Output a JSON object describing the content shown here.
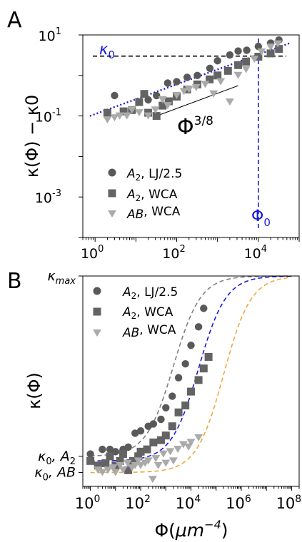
{
  "panel_a_letter": "A",
  "panel_b_letter": "B",
  "chart_data": [
    {
      "panel": "A",
      "type": "scatter",
      "xscale": "log",
      "yscale": "log",
      "xlim": [
        0.5,
        100000
      ],
      "ylim": [
        0.0001,
        10
      ],
      "ylabel": "κ(Φ) − κ0",
      "x_ticks": [
        1,
        100,
        10000
      ],
      "x_tick_labels": [
        {
          "base": "10",
          "exp": "0"
        },
        {
          "base": "10",
          "exp": "2"
        },
        {
          "base": "10",
          "exp": "4"
        }
      ],
      "y_ticks": [
        0.001,
        0.1,
        10
      ],
      "y_tick_labels": [
        {
          "base": "10",
          "exp": "-3"
        },
        {
          "base": "10",
          "exp": "-1"
        },
        {
          "base": "10",
          "exp": "1"
        }
      ],
      "legend_position": "bottom-left",
      "series": [
        {
          "name": "A2, LJ/2.5",
          "name_main": "A",
          "name_sub": "2",
          "name_rest": ", LJ/2.5",
          "marker": "circle",
          "color": "#595959",
          "x": [
            3,
            20,
            32,
            60,
            100,
            180,
            320,
            650,
            1000,
            2000,
            3200,
            5200,
            10000,
            20000,
            32000
          ],
          "y": [
            0.32,
            0.25,
            0.32,
            0.65,
            0.7,
            0.9,
            1.0,
            1.5,
            2.3,
            3.2,
            4.0,
            4.2,
            5.2,
            6.3,
            7.5
          ]
        },
        {
          "name": "A2, WCA",
          "name_main": "A",
          "name_sub": "2",
          "name_rest": ", WCA",
          "marker": "square",
          "color": "#636363",
          "x": [
            2,
            5,
            8,
            12,
            16,
            20,
            32,
            45,
            64,
            100,
            180,
            320,
            640,
            1000,
            1800,
            3200,
            5000,
            10000,
            20000,
            32000
          ],
          "y": [
            0.12,
            0.13,
            0.14,
            0.22,
            0.35,
            0.12,
            0.1,
            0.18,
            0.23,
            0.3,
            0.45,
            0.6,
            0.8,
            1.0,
            1.3,
            1.8,
            2.2,
            2.9,
            3.5,
            4.5
          ]
        },
        {
          "name": "AB, WCA",
          "name_main": "AB",
          "name_sub": "",
          "name_rest": ", WCA",
          "marker": "triangle-down",
          "color": "#aaaaaa",
          "x": [
            2,
            3,
            4,
            6,
            8,
            12,
            20,
            30,
            45,
            60,
            100,
            150,
            200,
            300,
            500,
            800,
            1200,
            2000,
            3200,
            5000,
            8000,
            12000,
            20000,
            30000
          ],
          "y": [
            0.08,
            0.09,
            0.1,
            0.1,
            0.14,
            0.12,
            0.1,
            0.14,
            0.25,
            0.18,
            0.32,
            0.4,
            0.45,
            0.5,
            0.6,
            0.35,
            0.7,
            0.22,
            1.0,
            1.4,
            2.5,
            3.8,
            5.0,
            6.0
          ]
        }
      ],
      "annotations": {
        "kappa0_label": "κ0",
        "kappa0_main": "κ",
        "kappa0_sub": "0",
        "phi0_label": "Φ0",
        "phi0_main": "Φ",
        "phi0_sub": "0",
        "slope_label": "Φ3/8",
        "slope_main": "Φ",
        "slope_sup": "3/8",
        "kappa0_level": 3,
        "phi0_value": 10000,
        "fit_line": {
          "x": [
            0.5,
            100000
          ],
          "y": [
            0.1,
            6.2
          ]
        },
        "slope_line": {
          "x": [
            32,
            3200
          ],
          "y": [
            0.1,
            0.56
          ]
        }
      },
      "colors": {
        "kappa0_line": "#000000",
        "phi0_line": "#1a1adb",
        "fit": "#1a1adb",
        "slope": "#000000",
        "blue_text": "#1a1adb"
      }
    },
    {
      "panel": "B",
      "type": "scatter",
      "xscale": "log",
      "yscale": "linear",
      "xlim": [
        0.5,
        200000000
      ],
      "ylim": [
        0.9,
        10
      ],
      "ylabel": "κ(Φ)",
      "xlabel": "Φ(μm−4)",
      "xlabel_main": "Φ(",
      "xlabel_unit": "μm",
      "xlabel_sup": "−4",
      "xlabel_close": ")",
      "x_ticks": [
        1,
        100,
        10000,
        1000000,
        100000000
      ],
      "x_tick_labels": [
        {
          "base": "10",
          "exp": "0"
        },
        {
          "base": "10",
          "exp": "2"
        },
        {
          "base": "10",
          "exp": "4"
        },
        {
          "base": "10",
          "exp": "6"
        },
        {
          "base": "10",
          "exp": "8"
        }
      ],
      "y_tick_labels": [
        {
          "main": "κ",
          "sub": "max",
          "tail": "",
          "value": 10
        },
        {
          "main": "κ",
          "sub": "0",
          "tail": ", A",
          "tail_sub": "2",
          "value": 2.2
        },
        {
          "main": "κ",
          "sub": "0",
          "tail": ", AB",
          "tail_sub": "",
          "value": 1.5
        }
      ],
      "legend_position": "top-left",
      "series": [
        {
          "name": "A2, LJ/2.5",
          "name_main": "A",
          "name_sub": "2",
          "name_rest": ", LJ/2.5",
          "marker": "circle",
          "color": "#595959",
          "x": [
            1,
            3,
            6,
            10,
            20,
            32,
            60,
            100,
            200,
            320,
            640,
            1000,
            1800,
            3200,
            6000,
            10000,
            20000,
            32000
          ],
          "y": [
            2.3,
            2.5,
            2.5,
            2.4,
            2.5,
            2.6,
            3.2,
            3.3,
            3.5,
            3.6,
            3.8,
            4.3,
            4.8,
            5.6,
            6.2,
            7.0,
            7.8,
            8.6
          ]
        },
        {
          "name": "A2, WCA",
          "name_main": "A",
          "name_sub": "2",
          "name_rest": ", WCA",
          "marker": "square",
          "color": "#636363",
          "x": [
            1,
            2,
            4,
            6,
            10,
            15,
            20,
            32,
            50,
            80,
            100,
            180,
            320,
            640,
            1000,
            1800,
            3200,
            6000,
            10000,
            20000,
            32000,
            50000
          ],
          "y": [
            2.0,
            1.8,
            1.9,
            2.2,
            1.8,
            2.0,
            2.3,
            1.6,
            2.0,
            2.2,
            2.4,
            2.5,
            2.8,
            2.9,
            3.1,
            3.5,
            4.1,
            4.4,
            5.0,
            5.5,
            6.0,
            6.5
          ]
        },
        {
          "name": "AB, WCA",
          "name_main": "AB",
          "name_sub": "",
          "name_rest": ", WCA",
          "marker": "triangle-down",
          "color": "#aaaaaa",
          "x": [
            2,
            3,
            5,
            8,
            10,
            15,
            20,
            30,
            45,
            60,
            80,
            100,
            150,
            200,
            300,
            400,
            500,
            800,
            1000,
            1500,
            2000,
            3000,
            5000,
            8000,
            10000,
            20000
          ],
          "y": [
            1.6,
            1.5,
            1.6,
            1.7,
            1.5,
            1.8,
            1.6,
            1.9,
            1.7,
            1.8,
            2.0,
            1.8,
            1.9,
            2.0,
            1.2,
            2.1,
            1.8,
            2.3,
            1.9,
            2.4,
            2.0,
            2.5,
            2.7,
            2.6,
            2.8,
            3.0
          ]
        }
      ],
      "fit_curves": [
        {
          "color": "#808080",
          "x0": 2000,
          "low": 2.2
        },
        {
          "color": "#1a1adb",
          "x0": 20000,
          "low": 2.0
        },
        {
          "color": "#f2a73b",
          "x0": 200000,
          "low": 1.5
        }
      ],
      "fit_high": 10
    }
  ]
}
